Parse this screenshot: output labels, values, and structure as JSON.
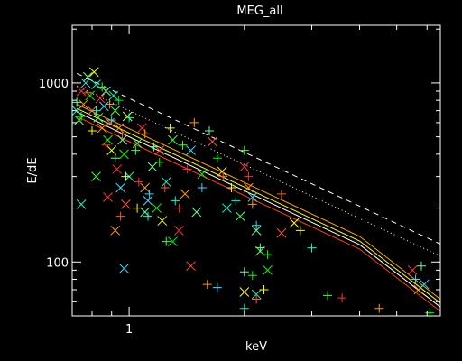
{
  "chart_data": {
    "type": "scatter",
    "title": "MEG_all",
    "xlabel": "keV",
    "ylabel": "E/dE",
    "xscale": "log",
    "yscale": "log",
    "xlim": [
      0.71,
      6.5
    ],
    "ylim": [
      50,
      2100
    ],
    "xticks": [
      {
        "value": 1,
        "label": "1"
      }
    ],
    "yticks": [
      {
        "value": 100,
        "label": "100"
      },
      {
        "value": 1000,
        "label": "1000"
      }
    ],
    "grid": false,
    "background": "#000000",
    "curves": [
      {
        "style": "dashed",
        "color": "#ffffff",
        "x": [
          0.73,
          1.0,
          2.0,
          4.0,
          6.5
        ],
        "y": [
          1130,
          820,
          410,
          205,
          126
        ]
      },
      {
        "style": "dotted",
        "color": "#ffffff",
        "x": [
          0.73,
          1.0,
          2.0,
          4.0,
          6.5
        ],
        "y": [
          960,
          700,
          350,
          175,
          108
        ]
      },
      {
        "style": "solid",
        "color": "#ffa500",
        "x": [
          0.73,
          1.0,
          2.0,
          4.0,
          6.5
        ],
        "y": [
          760,
          555,
          278,
          139,
          62
        ]
      },
      {
        "style": "solid",
        "color": "#ffff00",
        "x": [
          0.73,
          1.0,
          2.0,
          4.0,
          6.5
        ],
        "y": [
          720,
          525,
          262,
          131,
          59
        ]
      },
      {
        "style": "solid",
        "color": "#ffffff",
        "x": [
          0.73,
          1.0,
          2.0,
          4.0,
          6.5
        ],
        "y": [
          690,
          500,
          250,
          125,
          56
        ]
      },
      {
        "style": "solid",
        "color": "#ff4500",
        "x": [
          0.73,
          1.0,
          2.0,
          4.0,
          6.5
        ],
        "y": [
          650,
          470,
          235,
          118,
          53
        ]
      }
    ],
    "marker_colors": [
      "#00ff00",
      "#44ff44",
      "#66ff99",
      "#00ffcc",
      "#33ddff",
      "#ffff00",
      "#ff9900",
      "#ff5533",
      "#ff3333"
    ],
    "series": [
      {
        "marker": "x",
        "points": [
          [
            0.73,
            700
          ],
          [
            0.74,
            620
          ],
          [
            0.75,
            900
          ],
          [
            0.76,
            760
          ],
          [
            0.77,
            1000
          ],
          [
            0.78,
            1080
          ],
          [
            0.79,
            850
          ],
          [
            0.8,
            700
          ],
          [
            0.81,
            1150
          ],
          [
            0.82,
            980
          ],
          [
            0.83,
            640
          ],
          [
            0.84,
            820
          ],
          [
            0.85,
            560
          ],
          [
            0.86,
            740
          ],
          [
            0.87,
            900
          ],
          [
            0.88,
            480
          ],
          [
            0.89,
            600
          ],
          [
            0.9,
            420
          ],
          [
            0.91,
            850
          ],
          [
            0.92,
            700
          ],
          [
            0.93,
            330
          ],
          [
            0.94,
            560
          ],
          [
            0.95,
            260
          ],
          [
            0.96,
            480
          ],
          [
            0.97,
            400
          ],
          [
            0.98,
            210
          ],
          [
            0.99,
            650
          ],
          [
            1.0,
            300
          ],
          [
            1.05,
            460
          ],
          [
            1.08,
            560
          ],
          [
            1.1,
            260
          ],
          [
            1.12,
            220
          ],
          [
            1.15,
            340
          ],
          [
            1.18,
            200
          ],
          [
            1.2,
            420
          ],
          [
            1.22,
            170
          ],
          [
            1.25,
            280
          ],
          [
            1.3,
            480
          ],
          [
            1.35,
            150
          ],
          [
            1.4,
            240
          ],
          [
            1.45,
            420
          ],
          [
            1.5,
            190
          ],
          [
            1.55,
            310
          ],
          [
            1.65,
            470
          ],
          [
            1.75,
            320
          ],
          [
            1.8,
            200
          ],
          [
            1.95,
            180
          ],
          [
            2.0,
            340
          ],
          [
            2.05,
            260
          ],
          [
            2.1,
            230
          ],
          [
            2.15,
            150
          ],
          [
            2.3,
            90
          ],
          [
            2.5,
            145
          ],
          [
            2.7,
            165
          ],
          [
            0.75,
            210
          ],
          [
            0.82,
            300
          ],
          [
            0.88,
            230
          ],
          [
            0.92,
            150
          ],
          [
            0.97,
            92
          ],
          [
            1.1,
            190
          ],
          [
            1.3,
            130
          ],
          [
            1.45,
            95
          ],
          [
            2.0,
            68
          ],
          [
            2.15,
            66
          ],
          [
            2.2,
            115
          ],
          [
            5.5,
            90
          ],
          [
            5.7,
            70
          ],
          [
            5.9,
            75
          ]
        ]
      },
      {
        "marker": "+",
        "points": [
          [
            0.73,
            780
          ],
          [
            0.75,
            650
          ],
          [
            0.78,
            880
          ],
          [
            0.8,
            540
          ],
          [
            0.82,
            700
          ],
          [
            0.85,
            950
          ],
          [
            0.87,
            450
          ],
          [
            0.89,
            760
          ],
          [
            0.9,
            620
          ],
          [
            0.92,
            380
          ],
          [
            0.94,
            800
          ],
          [
            0.96,
            520
          ],
          [
            0.98,
            300
          ],
          [
            1.0,
            640
          ],
          [
            1.04,
            420
          ],
          [
            1.06,
            280
          ],
          [
            1.1,
            520
          ],
          [
            1.13,
            240
          ],
          [
            1.16,
            440
          ],
          [
            1.2,
            360
          ],
          [
            1.24,
            260
          ],
          [
            1.28,
            560
          ],
          [
            1.32,
            220
          ],
          [
            1.38,
            450
          ],
          [
            1.42,
            330
          ],
          [
            1.48,
            600
          ],
          [
            1.55,
            260
          ],
          [
            1.62,
            540
          ],
          [
            1.7,
            380
          ],
          [
            1.76,
            300
          ],
          [
            1.85,
            260
          ],
          [
            1.9,
            220
          ],
          [
            2.0,
            420
          ],
          [
            2.05,
            300
          ],
          [
            2.1,
            210
          ],
          [
            2.15,
            160
          ],
          [
            2.2,
            120
          ],
          [
            2.3,
            110
          ],
          [
            2.5,
            240
          ],
          [
            2.8,
            150
          ],
          [
            3.0,
            120
          ],
          [
            3.3,
            65
          ],
          [
            3.6,
            63
          ],
          [
            4.5,
            55
          ],
          [
            5.6,
            80
          ],
          [
            5.8,
            95
          ],
          [
            6.1,
            52
          ],
          [
            0.95,
            180
          ],
          [
            1.05,
            200
          ],
          [
            1.12,
            180
          ],
          [
            1.25,
            130
          ],
          [
            1.35,
            200
          ],
          [
            1.6,
            75
          ],
          [
            1.7,
            72
          ],
          [
            2.0,
            88
          ],
          [
            2.1,
            84
          ],
          [
            2.15,
            62
          ],
          [
            2.25,
            70
          ],
          [
            2.0,
            55
          ]
        ]
      }
    ]
  }
}
